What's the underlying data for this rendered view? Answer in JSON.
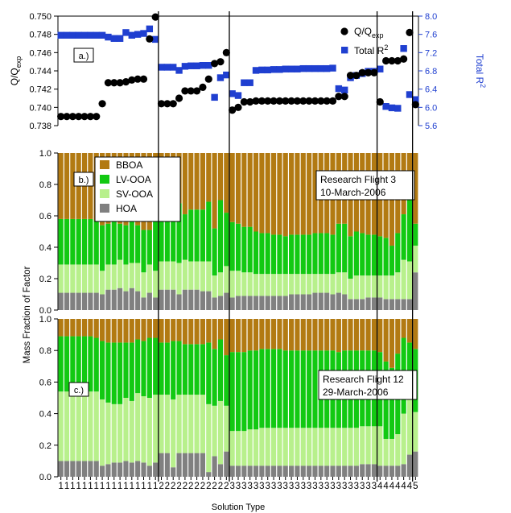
{
  "chart_data": {
    "type": "bar",
    "x_tick_labels": [
      "1",
      "1",
      "1",
      "1",
      "1",
      "1",
      "1",
      "1",
      "1",
      "1",
      "1",
      "1",
      "1",
      "1",
      "1",
      "1",
      "1",
      "2",
      "2",
      "2",
      "2",
      "2",
      "2",
      "2",
      "2",
      "2",
      "2",
      "2",
      "2",
      "3",
      "3",
      "3",
      "3",
      "3",
      "3",
      "3",
      "3",
      "3",
      "3",
      "3",
      "3",
      "3",
      "3",
      "3",
      "3",
      "3",
      "3",
      "3",
      "3",
      "3",
      "3",
      "3",
      "3",
      "3",
      "4",
      "4",
      "4",
      "4",
      "4",
      "4",
      "5"
    ],
    "group_boundaries": [
      17,
      29,
      54,
      60
    ],
    "xlabel": "Solution Type",
    "stacked_ylabel": "Mass Fraction of Factor",
    "panels": [
      {
        "label": "a.)",
        "type": "scatter",
        "left_axis": {
          "label": "Q/Qexp",
          "label_main": "Q/Q",
          "label_sub": "exp",
          "ylim": [
            0.738,
            0.75
          ],
          "ticks": [
            "0.738",
            "0.740",
            "0.742",
            "0.744",
            "0.746",
            "0.748",
            "0.750"
          ]
        },
        "right_axis": {
          "label": "Total R²",
          "label_main": "Total R",
          "label_sup": "2",
          "ylim": [
            5.6,
            8.0
          ],
          "ticks": [
            "5.6",
            "6.0",
            "6.4",
            "6.8",
            "7.2",
            "7.6",
            "8.0"
          ],
          "color": "#1f3fd0"
        },
        "legend": {
          "q_label_main": "Q/Q",
          "q_label_sub": "exp",
          "r2_label_main": "Total R",
          "r2_label_sup": "2",
          "placement": "top-right"
        },
        "series": [
          {
            "name": "Q/Qexp",
            "axis": "left",
            "marker": "circle",
            "color": "#000000",
            "values": [
              0.739,
              0.739,
              0.739,
              0.739,
              0.739,
              0.739,
              0.739,
              0.7404,
              0.7427,
              0.7427,
              0.7427,
              0.7428,
              0.743,
              0.7431,
              0.7431,
              0.7475,
              0.7499,
              0.7404,
              0.7404,
              0.7404,
              0.741,
              0.7418,
              0.7418,
              0.7418,
              0.7422,
              0.7431,
              0.7448,
              0.745,
              0.746,
              0.7397,
              0.74,
              0.7406,
              0.7406,
              0.7407,
              0.7407,
              0.7407,
              0.7407,
              0.7407,
              0.7407,
              0.7407,
              0.7407,
              0.7407,
              0.7407,
              0.7407,
              0.7407,
              0.7407,
              0.7407,
              0.7412,
              0.7412,
              0.7435,
              0.7435,
              0.7438,
              0.7438,
              0.7438,
              0.7406,
              0.7451,
              0.7451,
              0.7451,
              0.7453,
              0.7482,
              0.7403
            ]
          },
          {
            "name": "Total R²",
            "axis": "right",
            "marker": "square",
            "color": "#1f3fd0",
            "values": [
              7.58,
              7.58,
              7.58,
              7.58,
              7.58,
              7.58,
              7.58,
              7.58,
              7.54,
              7.51,
              7.51,
              7.64,
              7.58,
              7.6,
              7.62,
              7.72,
              7.49,
              6.88,
              6.88,
              6.88,
              6.81,
              6.9,
              6.91,
              6.91,
              6.92,
              6.92,
              6.22,
              6.65,
              6.71,
              6.3,
              6.26,
              6.54,
              6.54,
              6.81,
              6.82,
              6.82,
              6.83,
              6.83,
              6.84,
              6.84,
              6.84,
              6.85,
              6.85,
              6.85,
              6.85,
              6.85,
              6.86,
              6.41,
              6.38,
              6.65,
              6.7,
              6.74,
              6.79,
              6.79,
              6.84,
              6.02,
              5.99,
              5.98,
              7.29,
              6.28,
              6.17
            ]
          }
        ]
      },
      {
        "label": "b.)",
        "type": "stacked_bar",
        "annotation": [
          "Research Flight 3",
          "10-March-2006"
        ],
        "ylim": [
          0,
          1.0
        ],
        "ticks": [
          "0.0",
          "0.2",
          "0.4",
          "0.6",
          "0.8",
          "1.0"
        ],
        "legend": {
          "placement": "top-left"
        },
        "series": [
          {
            "name": "HOA",
            "color": "#808080",
            "values": [
              0.11,
              0.11,
              0.11,
              0.11,
              0.11,
              0.11,
              0.11,
              0.1,
              0.13,
              0.13,
              0.14,
              0.12,
              0.14,
              0.12,
              0.08,
              0.11,
              0.08,
              0.13,
              0.13,
              0.13,
              0.1,
              0.13,
              0.13,
              0.13,
              0.12,
              0.12,
              0.08,
              0.09,
              0.11,
              0.08,
              0.09,
              0.09,
              0.09,
              0.09,
              0.09,
              0.09,
              0.09,
              0.09,
              0.09,
              0.1,
              0.1,
              0.1,
              0.1,
              0.11,
              0.11,
              0.11,
              0.1,
              0.11,
              0.1,
              0.07,
              0.07,
              0.07,
              0.08,
              0.08,
              0.08,
              0.07,
              0.07,
              0.07,
              0.07,
              0.07,
              0.24
            ]
          },
          {
            "name": "SV-OOA",
            "color": "#b8f08c",
            "values": [
              0.18,
              0.18,
              0.18,
              0.18,
              0.18,
              0.18,
              0.18,
              0.15,
              0.16,
              0.16,
              0.18,
              0.17,
              0.16,
              0.18,
              0.16,
              0.18,
              0.17,
              0.18,
              0.18,
              0.18,
              0.2,
              0.19,
              0.18,
              0.18,
              0.19,
              0.19,
              0.14,
              0.15,
              0.17,
              0.17,
              0.16,
              0.15,
              0.15,
              0.14,
              0.14,
              0.14,
              0.14,
              0.14,
              0.14,
              0.13,
              0.13,
              0.13,
              0.13,
              0.12,
              0.12,
              0.12,
              0.13,
              0.13,
              0.14,
              0.13,
              0.15,
              0.15,
              0.14,
              0.14,
              0.14,
              0.15,
              0.15,
              0.17,
              0.25,
              0.24,
              0.17
            ]
          },
          {
            "name": "LV-OOA",
            "color": "#12c912",
            "values": [
              0.29,
              0.29,
              0.29,
              0.29,
              0.29,
              0.29,
              0.28,
              0.29,
              0.26,
              0.28,
              0.23,
              0.25,
              0.31,
              0.24,
              0.27,
              0.22,
              0.35,
              0.34,
              0.34,
              0.34,
              0.38,
              0.29,
              0.33,
              0.33,
              0.33,
              0.38,
              0.3,
              0.46,
              0.34,
              0.31,
              0.3,
              0.29,
              0.29,
              0.27,
              0.26,
              0.26,
              0.25,
              0.25,
              0.24,
              0.25,
              0.25,
              0.25,
              0.25,
              0.26,
              0.26,
              0.26,
              0.25,
              0.31,
              0.31,
              0.27,
              0.28,
              0.27,
              0.26,
              0.26,
              0.25,
              0.24,
              0.19,
              0.25,
              0.29,
              0.41,
              0.14
            ]
          },
          {
            "name": "BBOA",
            "color": "#b27a12",
            "values": [
              0.42,
              0.42,
              0.42,
              0.42,
              0.42,
              0.42,
              0.43,
              0.46,
              0.45,
              0.43,
              0.45,
              0.46,
              0.39,
              0.46,
              0.49,
              0.49,
              0.4,
              0.35,
              0.35,
              0.35,
              0.32,
              0.39,
              0.36,
              0.36,
              0.36,
              0.31,
              0.48,
              0.3,
              0.38,
              0.44,
              0.45,
              0.47,
              0.47,
              0.5,
              0.51,
              0.51,
              0.52,
              0.52,
              0.53,
              0.52,
              0.52,
              0.52,
              0.52,
              0.51,
              0.51,
              0.51,
              0.52,
              0.45,
              0.45,
              0.53,
              0.5,
              0.51,
              0.52,
              0.52,
              0.53,
              0.54,
              0.59,
              0.51,
              0.39,
              0.28,
              0.45
            ]
          }
        ]
      },
      {
        "label": "c.)",
        "type": "stacked_bar",
        "annotation": [
          "Research Flight 12",
          "29-March-2006"
        ],
        "ylim": [
          0,
          1.0
        ],
        "ticks": [
          "0.0",
          "0.2",
          "0.4",
          "0.6",
          "0.8",
          "1.0"
        ],
        "series": [
          {
            "name": "HOA",
            "color": "#808080",
            "values": [
              0.1,
              0.1,
              0.1,
              0.1,
              0.1,
              0.1,
              0.1,
              0.07,
              0.08,
              0.09,
              0.09,
              0.1,
              0.09,
              0.1,
              0.09,
              0.07,
              0.09,
              0.15,
              0.15,
              0.06,
              0.15,
              0.15,
              0.15,
              0.15,
              0.15,
              0.03,
              0.13,
              0.08,
              0.16,
              0.07,
              0.07,
              0.07,
              0.07,
              0.07,
              0.07,
              0.07,
              0.07,
              0.07,
              0.07,
              0.07,
              0.07,
              0.07,
              0.07,
              0.07,
              0.07,
              0.07,
              0.07,
              0.07,
              0.07,
              0.07,
              0.07,
              0.08,
              0.08,
              0.08,
              0.07,
              0.07,
              0.07,
              0.07,
              0.08,
              0.14,
              0.16
            ]
          },
          {
            "name": "SV-OOA",
            "color": "#b8f08c",
            "values": [
              0.44,
              0.44,
              0.44,
              0.44,
              0.44,
              0.44,
              0.44,
              0.42,
              0.39,
              0.37,
              0.37,
              0.4,
              0.39,
              0.43,
              0.42,
              0.43,
              0.43,
              0.37,
              0.37,
              0.43,
              0.37,
              0.37,
              0.37,
              0.37,
              0.37,
              0.43,
              0.32,
              0.4,
              0.29,
              0.22,
              0.22,
              0.22,
              0.23,
              0.23,
              0.24,
              0.24,
              0.24,
              0.24,
              0.24,
              0.24,
              0.24,
              0.24,
              0.24,
              0.24,
              0.24,
              0.24,
              0.24,
              0.24,
              0.24,
              0.24,
              0.24,
              0.24,
              0.24,
              0.24,
              0.25,
              0.17,
              0.17,
              0.2,
              0.32,
              0.39,
              0.25
            ]
          },
          {
            "name": "LV-OOA",
            "color": "#12c912",
            "values": [
              0.35,
              0.35,
              0.35,
              0.35,
              0.35,
              0.35,
              0.34,
              0.37,
              0.38,
              0.39,
              0.39,
              0.35,
              0.37,
              0.34,
              0.35,
              0.38,
              0.36,
              0.33,
              0.33,
              0.37,
              0.34,
              0.32,
              0.32,
              0.32,
              0.32,
              0.39,
              0.36,
              0.39,
              0.32,
              0.5,
              0.5,
              0.5,
              0.5,
              0.5,
              0.5,
              0.5,
              0.5,
              0.5,
              0.49,
              0.49,
              0.49,
              0.49,
              0.49,
              0.49,
              0.49,
              0.49,
              0.49,
              0.48,
              0.49,
              0.49,
              0.49,
              0.48,
              0.48,
              0.48,
              0.47,
              0.49,
              0.45,
              0.51,
              0.48,
              0.32,
              0.4
            ]
          },
          {
            "name": "BBOA",
            "color": "#b27a12",
            "values": [
              0.11,
              0.11,
              0.11,
              0.11,
              0.11,
              0.11,
              0.12,
              0.14,
              0.15,
              0.15,
              0.15,
              0.15,
              0.15,
              0.13,
              0.14,
              0.12,
              0.12,
              0.15,
              0.15,
              0.14,
              0.14,
              0.16,
              0.16,
              0.16,
              0.16,
              0.15,
              0.19,
              0.13,
              0.23,
              0.21,
              0.21,
              0.21,
              0.2,
              0.2,
              0.19,
              0.19,
              0.19,
              0.19,
              0.2,
              0.2,
              0.2,
              0.2,
              0.2,
              0.2,
              0.2,
              0.2,
              0.2,
              0.21,
              0.2,
              0.2,
              0.2,
              0.2,
              0.2,
              0.2,
              0.21,
              0.27,
              0.31,
              0.22,
              0.12,
              0.15,
              0.19
            ]
          }
        ]
      }
    ]
  }
}
